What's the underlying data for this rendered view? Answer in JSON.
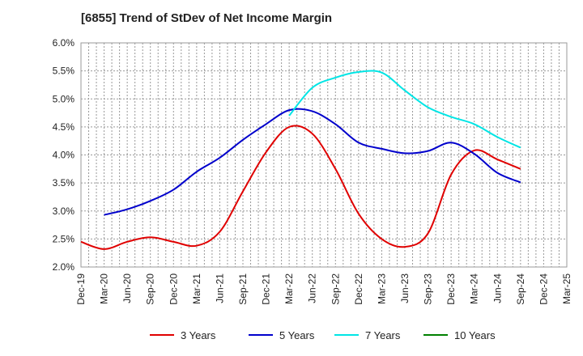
{
  "chart_data": {
    "type": "line",
    "title": "[6855]  Trend of StDev of Net Income Margin",
    "xlabel": "",
    "ylabel": "",
    "x": [
      "Dec-19",
      "Mar-20",
      "Jun-20",
      "Sep-20",
      "Dec-20",
      "Mar-21",
      "Jun-21",
      "Sep-21",
      "Dec-21",
      "Mar-22",
      "Jun-22",
      "Sep-22",
      "Dec-22",
      "Mar-23",
      "Jun-23",
      "Sep-23",
      "Dec-23",
      "Mar-24",
      "Jun-24",
      "Sep-24",
      "Dec-24",
      "Mar-25"
    ],
    "y_ticks": [
      "2.0%",
      "2.5%",
      "3.0%",
      "3.5%",
      "4.0%",
      "4.5%",
      "5.0%",
      "5.5%",
      "6.0%"
    ],
    "ylim": [
      2.0,
      6.0
    ],
    "grid": true,
    "legend_position": "bottom",
    "series": [
      {
        "name": "3 Years",
        "color": "#e00000",
        "values": [
          2.45,
          2.32,
          2.45,
          2.53,
          2.45,
          2.38,
          2.63,
          3.35,
          4.05,
          4.5,
          4.38,
          3.75,
          2.95,
          2.5,
          2.36,
          2.6,
          3.65,
          4.08,
          3.92,
          3.75,
          null,
          null
        ]
      },
      {
        "name": "5 Years",
        "color": "#0000cc",
        "values": [
          null,
          2.93,
          3.03,
          3.18,
          3.38,
          3.7,
          3.95,
          4.27,
          4.55,
          4.8,
          4.78,
          4.55,
          4.22,
          4.11,
          4.03,
          4.07,
          4.22,
          4.02,
          3.68,
          3.51,
          null,
          null
        ]
      },
      {
        "name": "7 Years",
        "color": "#00e5e5",
        "values": [
          null,
          null,
          null,
          null,
          null,
          null,
          null,
          null,
          null,
          4.7,
          5.2,
          5.38,
          5.48,
          5.47,
          5.15,
          4.85,
          4.68,
          4.55,
          4.32,
          4.13,
          null,
          null
        ]
      },
      {
        "name": "10 Years",
        "color": "#008000",
        "values": [
          null,
          null,
          null,
          null,
          null,
          null,
          null,
          null,
          null,
          null,
          null,
          null,
          null,
          null,
          null,
          null,
          null,
          null,
          null,
          null,
          null,
          null
        ]
      }
    ]
  }
}
